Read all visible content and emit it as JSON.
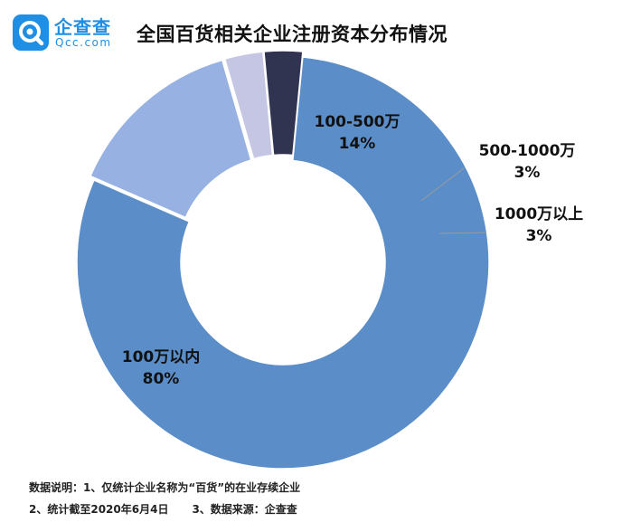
{
  "header": {
    "logo_cn": "企查查",
    "logo_en": "Qcc.com",
    "title": "全国百货相关企业注册资本分布情况"
  },
  "chart_data": {
    "type": "pie",
    "donut": true,
    "title": "全国百货相关企业注册资本分布情况",
    "slices": [
      {
        "label": "100万以内",
        "value": 80,
        "display": "80%",
        "color": "#5b8ec8"
      },
      {
        "label": "100-500万",
        "value": 14,
        "display": "14%",
        "color": "#97b2e2"
      },
      {
        "label": "500-1000万",
        "value": 3,
        "display": "3%",
        "color": "#c4c6e3"
      },
      {
        "label": "1000万以上",
        "value": 3,
        "display": "3%",
        "color": "#303450"
      }
    ]
  },
  "footnotes": {
    "line1": "数据说明：1、仅统计企业名称为“百货”的在业存续企业",
    "line2_a": "2、统计截至2020年6月4日",
    "line2_b": "3、数据来源：企查查"
  }
}
